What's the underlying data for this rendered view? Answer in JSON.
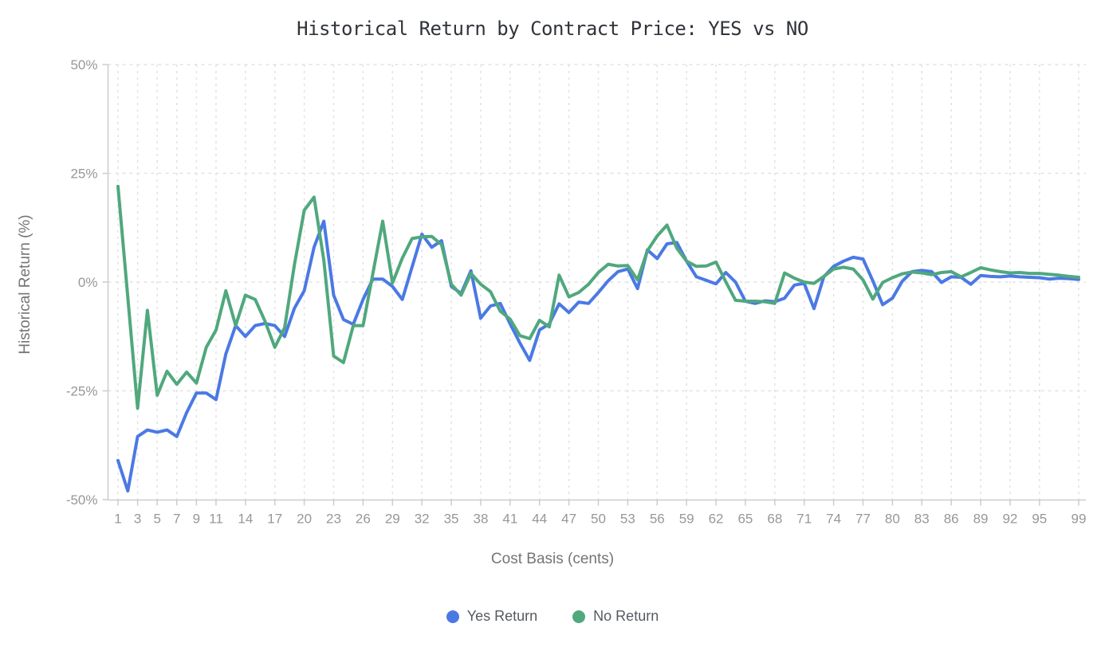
{
  "title": "Historical Return by Contract Price: YES vs NO",
  "chart_data": {
    "type": "line",
    "title": "Historical Return by Contract Price: YES vs NO",
    "xlabel": "Cost Basis (cents)",
    "ylabel": "Historical Return (%)",
    "x_min": 1,
    "x_max": 99,
    "x_description": "one data point per contract price cent, 1 through 99",
    "x_tick_labels": [
      1,
      3,
      5,
      7,
      9,
      11,
      14,
      17,
      20,
      23,
      26,
      29,
      32,
      35,
      38,
      41,
      44,
      47,
      50,
      53,
      56,
      59,
      62,
      65,
      68,
      71,
      74,
      77,
      80,
      83,
      86,
      89,
      92,
      95,
      99
    ],
    "y_ticks": [
      {
        "value": 50,
        "label": "50%"
      },
      {
        "value": 25,
        "label": "25%"
      },
      {
        "value": 0,
        "label": "0%"
      },
      {
        "value": -25,
        "label": "-25%"
      },
      {
        "value": -50,
        "label": "-50%"
      }
    ],
    "ylim": [
      -50,
      50
    ],
    "grid": "dashed",
    "legend_position": "bottom",
    "series": [
      {
        "name": "Yes Return",
        "color": "#4b79e4",
        "values": [
          -41,
          -48,
          -35.5,
          -34,
          -34.5,
          -34,
          -35.5,
          -30,
          -25.5,
          -25.5,
          -27,
          -16.5,
          -10,
          -12.5,
          -10,
          -9.5,
          -10,
          -12.5,
          -6,
          -2,
          8,
          14,
          -3,
          -8.6,
          -9.7,
          -4,
          0.7,
          0.7,
          -1,
          -4,
          3.5,
          11,
          8,
          9.5,
          -1,
          -2.6,
          2.6,
          -8.3,
          -5.5,
          -4.9,
          -9.6,
          -14,
          -18,
          -11,
          -9.6,
          -5,
          -7,
          -4.6,
          -4.9,
          -2.4,
          0.3,
          2.4,
          3,
          -1.5,
          7.4,
          5.4,
          8.8,
          9.1,
          4.8,
          1.2,
          0.4,
          -0.4,
          2.2,
          0,
          -4.4,
          -4.9,
          -4.3,
          -4.5,
          -3.7,
          -0.7,
          -0.3,
          -6.1,
          1.2,
          3.6,
          4.8,
          5.7,
          5.3,
          0.3,
          -5.2,
          -3.7,
          0.2,
          2.4,
          2.7,
          2.4,
          -0.1,
          1.2,
          1.1,
          -0.5,
          1.5,
          1.3,
          1.2,
          1.4,
          1.2,
          1.1,
          1,
          0.7,
          0.9,
          0.8,
          0.6
        ]
      },
      {
        "name": "No Return",
        "color": "#50a87d",
        "values": [
          22,
          -3.5,
          -29,
          -6.5,
          -26,
          -20.5,
          -23.5,
          -20.7,
          -23.2,
          -15,
          -11,
          -2,
          -10,
          -3,
          -4,
          -9,
          -15,
          -10.5,
          4,
          16.5,
          19.5,
          5,
          -17,
          -18.5,
          -10,
          -10,
          2,
          14,
          -0.2,
          5.5,
          10,
          10.4,
          10.5,
          8.6,
          -0.5,
          -3,
          2,
          -0.5,
          -2.2,
          -6.7,
          -8.5,
          -12.3,
          -13,
          -8.8,
          -10.3,
          1.6,
          -3.4,
          -2.4,
          -0.5,
          2.2,
          4.1,
          3.7,
          3.8,
          0.5,
          7.2,
          10.6,
          13.1,
          7.8,
          4.8,
          3.6,
          3.7,
          4.6,
          0.1,
          -4.2,
          -4.4,
          -4.4,
          -4.5,
          -4.9,
          2.1,
          0.9,
          0,
          -0.3,
          1.3,
          3,
          3.4,
          3,
          0.5,
          -3.9,
          -0.1,
          1,
          1.9,
          2.3,
          2.1,
          1.7,
          2.2,
          2.4,
          1.2,
          2.2,
          3.3,
          2.8,
          2.4,
          2.1,
          2.2,
          2,
          2,
          1.8,
          1.6,
          1.3,
          1.1
        ]
      }
    ],
    "style": {
      "axis_color": "#cccccc",
      "grid_color": "#e2e2e2",
      "tick_label_color": "#979797",
      "background": "#ffffff"
    }
  }
}
